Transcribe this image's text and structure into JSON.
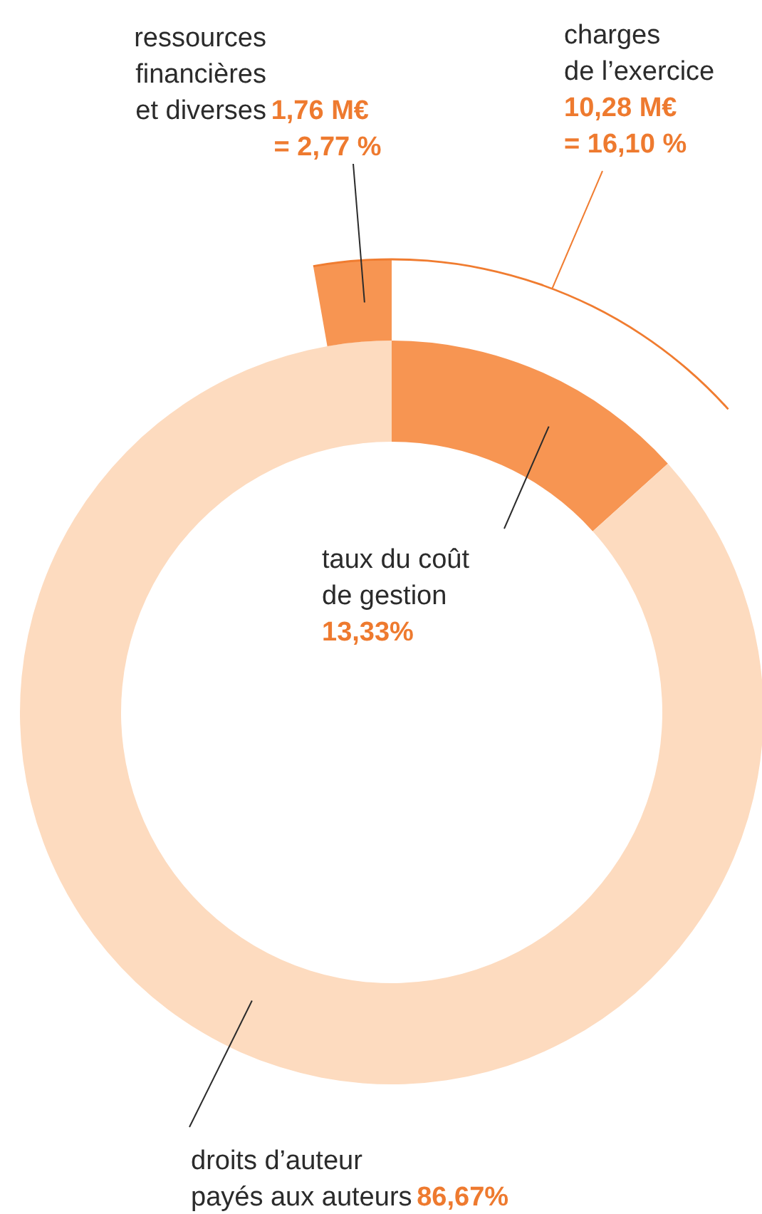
{
  "chart_data": [
    {
      "type": "donut",
      "categories": [
        "taux du coût de gestion",
        "droits d’auteur payés aux auteurs"
      ],
      "values": [
        13.33,
        86.67
      ],
      "colors": [
        "#f79552",
        "#fddbbf"
      ],
      "value_labels": [
        "13,33%",
        "86,67%"
      ]
    },
    {
      "type": "other",
      "categories": [
        "ressources financières et diverses",
        "charges de l’exercice"
      ],
      "values": [
        2.77,
        16.1
      ],
      "colors": [
        "#f79552",
        "#f07c30"
      ],
      "value_labels": [
        "1,76 M€ = 2,77 %",
        "10,28 M€ = 16,10 %"
      ]
    }
  ]
}
